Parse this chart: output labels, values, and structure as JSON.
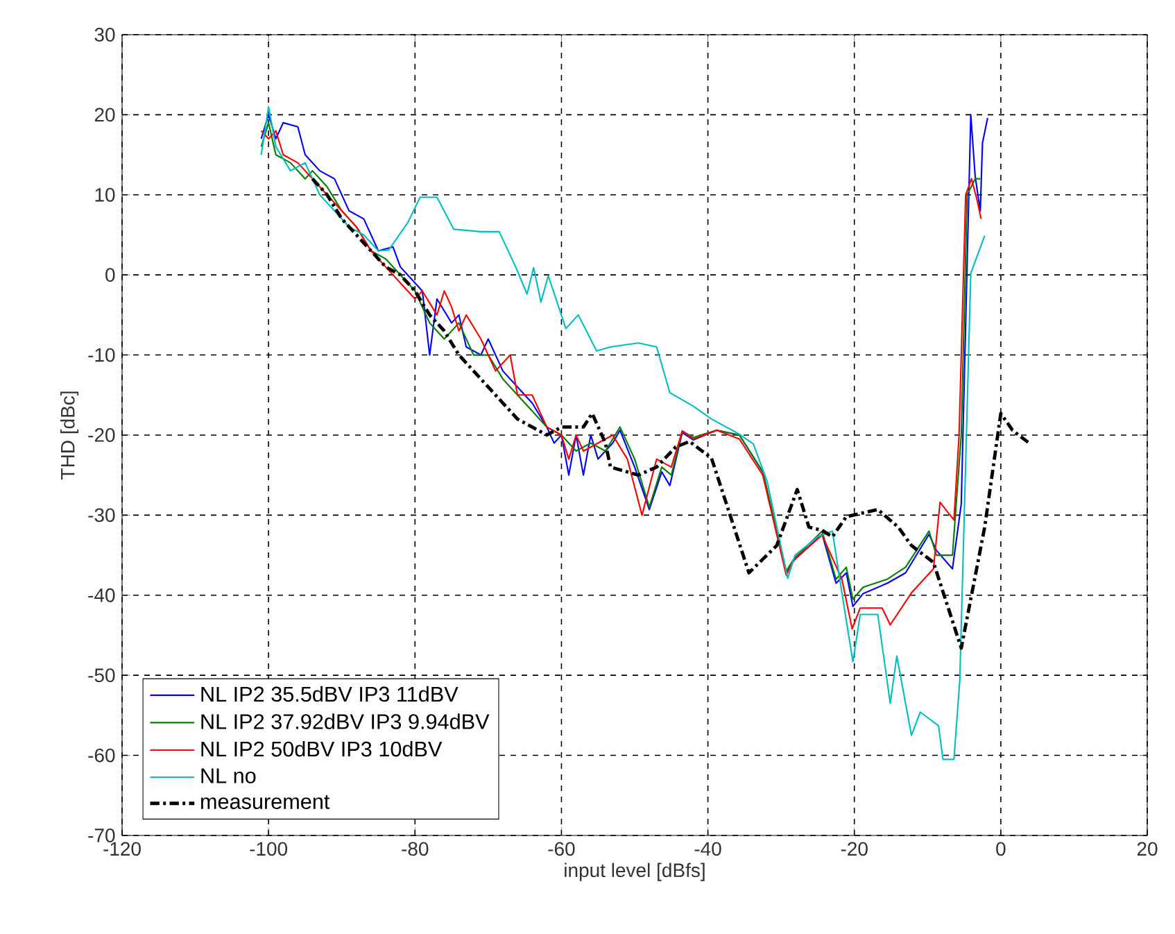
{
  "chart_data": {
    "type": "line",
    "xlabel": "input level [dBfs]",
    "ylabel": "THD [dBc]",
    "xlim": [
      -120,
      20
    ],
    "ylim": [
      -70,
      30
    ],
    "xticks": [
      -120,
      -100,
      -80,
      -60,
      -40,
      -20,
      0,
      20
    ],
    "yticks": [
      -70,
      -60,
      -50,
      -40,
      -30,
      -20,
      -10,
      0,
      10,
      20,
      30
    ],
    "grid": true,
    "legend": "bottom left",
    "marker": "none",
    "series": [
      {
        "name": "NL IP2 35.5dBV IP3 11dBV",
        "color": "#0000ff",
        "line_style": "solid",
        "x": [
          -101,
          -100,
          -99,
          -98,
          -96,
          -95,
          -93,
          -91,
          -89,
          -87,
          -85,
          -83,
          -82,
          -80,
          -79,
          -78,
          -77,
          -75,
          -74,
          -73,
          -71,
          -70,
          -68,
          -66,
          -64,
          -62,
          -61,
          -60,
          -59,
          -58,
          -57,
          -56,
          -55,
          -53,
          -52,
          -50,
          -48,
          -46.3,
          -45.2,
          -43.5,
          -42,
          -38.8,
          -35.7,
          -32.5,
          -29.3,
          -28.2,
          -24.4,
          -22.5,
          -21.1,
          -20.2,
          -18.8,
          -15.5,
          -13,
          -9.8,
          -8.8,
          -6.6,
          -5.4,
          -4.1,
          -3.5,
          -2.8,
          -2.5,
          -1.8
        ],
        "values": [
          17,
          20,
          17,
          19,
          18.5,
          15,
          13,
          12,
          8,
          7,
          3,
          3.5,
          1,
          -1,
          -2,
          -10,
          -3,
          -6,
          -5,
          -9,
          -10,
          -8,
          -12,
          -14,
          -16,
          -19,
          -21,
          -20,
          -25,
          -20,
          -25,
          -20,
          -23,
          -21,
          -19.4,
          -24,
          -29.3,
          -24.6,
          -26.3,
          -19.7,
          -20.6,
          -19.4,
          -20,
          -24.6,
          -37.2,
          -35.6,
          -32.4,
          -38.5,
          -37.2,
          -41.4,
          -39.8,
          -38.5,
          -37.2,
          -32.4,
          -34.4,
          -36.7,
          -28.6,
          20,
          12.3,
          8,
          16.5,
          19.6
        ]
      },
      {
        "name": "NL IP2 37.92dBV IP3 9.94dBV",
        "color": "#008000",
        "line_style": "solid",
        "x": [
          -101,
          -100,
          -99,
          -97,
          -95,
          -94,
          -92,
          -90,
          -88,
          -86,
          -84,
          -82,
          -80,
          -78,
          -76,
          -74,
          -72,
          -70,
          -68,
          -66,
          -64,
          -62,
          -60,
          -58,
          -56,
          -54,
          -52,
          -50,
          -48,
          -46.3,
          -45,
          -43.5,
          -42,
          -38.8,
          -35.7,
          -32.5,
          -29.3,
          -28.2,
          -24.4,
          -22.5,
          -21.1,
          -20.2,
          -18.8,
          -15.5,
          -13,
          -9.8,
          -8.8,
          -6.6,
          -5.4,
          -4.6,
          -3.5,
          -2.8
        ],
        "values": [
          16,
          19,
          15,
          14,
          12,
          13,
          11,
          8,
          6,
          3,
          2,
          0,
          -2,
          -6,
          -8,
          -6,
          -10,
          -10,
          -13,
          -15,
          -17,
          -19,
          -20,
          -22,
          -21,
          -22,
          -19,
          -23,
          -29,
          -24,
          -25,
          -19.5,
          -20.3,
          -19.4,
          -20,
          -24.6,
          -37,
          -35.4,
          -32,
          -38,
          -36.5,
          -40.5,
          -39,
          -38,
          -36.5,
          -32,
          -35,
          -35,
          -20,
          10,
          12,
          12
        ]
      },
      {
        "name": "NL IP2 50dBV IP3 10dBV",
        "color": "#ff0000",
        "line_style": "solid",
        "x": [
          -101,
          -100,
          -99,
          -98,
          -96,
          -94,
          -92,
          -90,
          -88,
          -86,
          -84,
          -82,
          -80,
          -79,
          -77,
          -76,
          -75,
          -74,
          -73,
          -71,
          -69,
          -67,
          -66,
          -64,
          -62,
          -60,
          -59,
          -58,
          -57,
          -55,
          -53,
          -51,
          -49,
          -47,
          -45,
          -43.5,
          -42,
          -38.8,
          -35.7,
          -32.5,
          -29.3,
          -28.2,
          -24.4,
          -21.7,
          -20.3,
          -19.2,
          -16.2,
          -15.1,
          -12.2,
          -9.2,
          -8.3,
          -6.4,
          -5.7,
          -4.8,
          -4,
          -3.2,
          -2.7
        ],
        "values": [
          18,
          17,
          18,
          15,
          14,
          12,
          10,
          8,
          6,
          3,
          1,
          -1,
          -3,
          -2,
          -5,
          -2,
          -4,
          -7,
          -5,
          -8,
          -12,
          -10,
          -15,
          -15,
          -19,
          -20,
          -23,
          -20,
          -22,
          -21,
          -20,
          -23,
          -30,
          -23,
          -24,
          -19.5,
          -20.5,
          -19.4,
          -20.5,
          -25,
          -37.5,
          -35.5,
          -32.5,
          -38,
          -44.2,
          -41.6,
          -41.6,
          -43.7,
          -39.7,
          -36.7,
          -28.4,
          -30.6,
          -20,
          10,
          12,
          9.2,
          7
        ]
      },
      {
        "name": "NL no",
        "color": "#00bfbf",
        "line_style": "solid",
        "x": [
          -101,
          -100,
          -99,
          -97,
          -95,
          -93,
          -91,
          -89,
          -87,
          -85,
          -83.6,
          -81,
          -79.3,
          -77,
          -74.7,
          -71,
          -68.5,
          -66.2,
          -64.7,
          -63.8,
          -62.8,
          -61.8,
          -59.4,
          -57.7,
          -55.2,
          -53.3,
          -49.5,
          -47,
          -45.2,
          -42,
          -39.5,
          -35.7,
          -33.8,
          -31.9,
          -29.1,
          -28.1,
          -25,
          -23,
          -21.7,
          -20.2,
          -19.2,
          -16.8,
          -15.1,
          -14.2,
          -12.2,
          -11,
          -8.5,
          -7.9,
          -6.4,
          -5.6,
          -4.1,
          -2.2
        ],
        "values": [
          15,
          21,
          16,
          13,
          14,
          10,
          8,
          6,
          5,
          3,
          3.1,
          6.5,
          9.7,
          9.7,
          5.7,
          5.4,
          5.4,
          0.9,
          -2.4,
          0.9,
          -3.4,
          -0.1,
          -6.7,
          -5,
          -9.5,
          -9,
          -8.5,
          -9,
          -14.7,
          -16.4,
          -18,
          -19.9,
          -21.1,
          -25.8,
          -37.9,
          -35,
          -32.7,
          -32,
          -39.7,
          -48.3,
          -42.4,
          -42.4,
          -53.5,
          -47.6,
          -57.5,
          -54.6,
          -56.3,
          -60.5,
          -60.5,
          -50.6,
          0.2,
          4.9
        ]
      },
      {
        "name": "measurement",
        "color": "#000000",
        "line_style": "dashdot",
        "x": [
          -94,
          -92,
          -90,
          -88,
          -86,
          -84,
          -82,
          -80,
          -78,
          -76,
          -74,
          -72,
          -70,
          -68,
          -66,
          -64,
          -62,
          -60,
          -57,
          -55.8,
          -54,
          -53.3,
          -49.5,
          -47,
          -44.4,
          -42.5,
          -39.5,
          -34.4,
          -30.6,
          -27.8,
          -26.2,
          -24.4,
          -23,
          -21.1,
          -16.8,
          -14,
          -12.2,
          -9.2,
          -5.4,
          -2.2,
          0,
          1.6,
          4
        ],
        "values": [
          12,
          10,
          7,
          5,
          3,
          1,
          0,
          -2,
          -5,
          -7,
          -10,
          -12,
          -14,
          -16,
          -18,
          -19,
          -20,
          -19,
          -19,
          -17.3,
          -21,
          -24,
          -25,
          -24,
          -21.5,
          -20.8,
          -22.9,
          -37.2,
          -33.8,
          -26.8,
          -31.5,
          -31.9,
          -32.7,
          -30.2,
          -29.3,
          -31.5,
          -33.8,
          -35.9,
          -46.6,
          -31.5,
          -17.3,
          -19.4,
          -21.1
        ]
      }
    ]
  }
}
